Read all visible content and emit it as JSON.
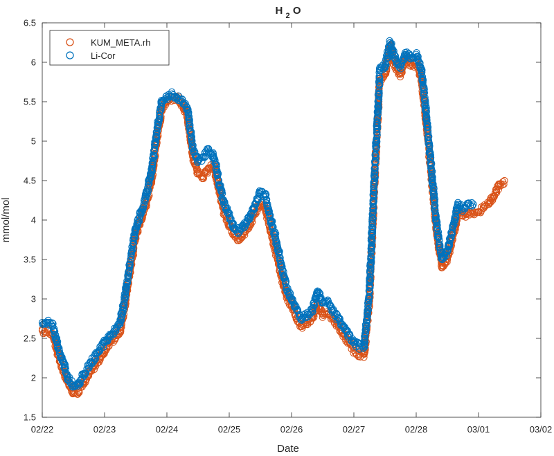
{
  "chart_data": {
    "type": "scatter",
    "title": "H",
    "title_sub": "2",
    "title_tail": "O",
    "xlabel": "Date",
    "ylabel": "mmol/mol",
    "xlim": [
      "2023-02-22",
      "2023-03-02"
    ],
    "ylim": [
      1.5,
      6.5
    ],
    "x_ticks": [
      "02/22",
      "02/23",
      "02/24",
      "02/25",
      "02/26",
      "02/27",
      "02/28",
      "03/01",
      "03/02"
    ],
    "y_ticks": [
      "1.5",
      "2",
      "2.5",
      "3",
      "3.5",
      "4",
      "4.5",
      "5",
      "5.5",
      "6",
      "6.5"
    ],
    "grid": false,
    "legend_position": "top-left",
    "series": [
      {
        "name": "KUM_META.rh",
        "color": "#D95319",
        "x": [
          "2023-02-22 00:00",
          "2023-02-22 02:00",
          "2023-02-22 04:00",
          "2023-02-22 06:00",
          "2023-02-22 08:00",
          "2023-02-22 10:00",
          "2023-02-22 12:00",
          "2023-02-22 14:00",
          "2023-02-22 16:00",
          "2023-02-22 18:00",
          "2023-02-22 20:00",
          "2023-02-22 22:00",
          "2023-02-23 00:00",
          "2023-02-23 02:00",
          "2023-02-23 04:00",
          "2023-02-23 06:00",
          "2023-02-23 08:00",
          "2023-02-23 10:00",
          "2023-02-23 12:00",
          "2023-02-23 14:00",
          "2023-02-23 16:00",
          "2023-02-23 18:00",
          "2023-02-23 20:00",
          "2023-02-23 22:00",
          "2023-02-24 00:00",
          "2023-02-24 02:00",
          "2023-02-24 04:00",
          "2023-02-24 06:00",
          "2023-02-24 08:00",
          "2023-02-24 10:00",
          "2023-02-24 12:00",
          "2023-02-24 14:00",
          "2023-02-24 16:00",
          "2023-02-24 18:00",
          "2023-02-24 20:00",
          "2023-02-24 22:00",
          "2023-02-25 00:00",
          "2023-02-25 02:00",
          "2023-02-25 04:00",
          "2023-02-25 06:00",
          "2023-02-25 08:00",
          "2023-02-25 10:00",
          "2023-02-25 12:00",
          "2023-02-25 14:00",
          "2023-02-25 16:00",
          "2023-02-25 18:00",
          "2023-02-25 20:00",
          "2023-02-25 22:00",
          "2023-02-26 00:00",
          "2023-02-26 02:00",
          "2023-02-26 04:00",
          "2023-02-26 06:00",
          "2023-02-26 08:00",
          "2023-02-26 10:00",
          "2023-02-26 12:00",
          "2023-02-26 14:00",
          "2023-02-26 16:00",
          "2023-02-26 18:00",
          "2023-02-26 20:00",
          "2023-02-26 22:00",
          "2023-02-27 00:00",
          "2023-02-27 02:00",
          "2023-02-27 04:00",
          "2023-02-27 06:00",
          "2023-02-27 08:00",
          "2023-02-27 10:00",
          "2023-02-27 12:00",
          "2023-02-27 14:00",
          "2023-02-27 16:00",
          "2023-02-27 18:00",
          "2023-02-27 20:00",
          "2023-02-27 22:00",
          "2023-02-28 00:00",
          "2023-02-28 02:00",
          "2023-02-28 04:00",
          "2023-02-28 06:00",
          "2023-02-28 08:00",
          "2023-02-28 10:00",
          "2023-02-28 12:00",
          "2023-02-28 14:00",
          "2023-02-28 15:00",
          "2023-02-28 16:00",
          "2023-02-28 18:00",
          "2023-02-28 20:00",
          "2023-02-28 22:00",
          "2023-03-01 00:00",
          "2023-03-01 02:00",
          "2023-03-01 04:00",
          "2023-03-01 06:00",
          "2023-03-01 08:00",
          "2023-03-01 10:00"
        ],
        "y": [
          2.6,
          2.6,
          2.55,
          2.3,
          2.1,
          1.95,
          1.8,
          1.82,
          1.95,
          2.05,
          2.15,
          2.25,
          2.35,
          2.45,
          2.5,
          2.6,
          2.95,
          3.4,
          3.8,
          4.0,
          4.2,
          4.5,
          5.0,
          5.4,
          5.5,
          5.55,
          5.55,
          5.45,
          5.3,
          4.8,
          4.6,
          4.55,
          4.65,
          4.7,
          4.4,
          4.1,
          3.95,
          3.8,
          3.75,
          3.85,
          3.95,
          4.1,
          4.2,
          4.15,
          3.85,
          3.6,
          3.3,
          3.05,
          2.9,
          2.75,
          2.65,
          2.7,
          2.75,
          2.95,
          2.8,
          2.8,
          2.75,
          2.65,
          2.55,
          2.45,
          2.35,
          2.3,
          2.3,
          3.0,
          4.5,
          5.8,
          5.85,
          6.2,
          5.95,
          5.85,
          6.05,
          5.95,
          6.0,
          5.8,
          5.2,
          4.5,
          3.8,
          3.4,
          3.5,
          3.8,
          3.9,
          4.1,
          4.05,
          4.1,
          4.1,
          4.1,
          4.15,
          4.2,
          4.3,
          4.45,
          4.5
        ]
      },
      {
        "name": "Li-Cor",
        "color": "#0072BD",
        "x": [
          "2023-02-22 00:00",
          "2023-02-22 02:00",
          "2023-02-22 04:00",
          "2023-02-22 06:00",
          "2023-02-22 08:00",
          "2023-02-22 10:00",
          "2023-02-22 12:00",
          "2023-02-22 14:00",
          "2023-02-22 16:00",
          "2023-02-22 18:00",
          "2023-02-22 20:00",
          "2023-02-22 22:00",
          "2023-02-23 00:00",
          "2023-02-23 02:00",
          "2023-02-23 04:00",
          "2023-02-23 06:00",
          "2023-02-23 08:00",
          "2023-02-23 10:00",
          "2023-02-23 12:00",
          "2023-02-23 14:00",
          "2023-02-23 16:00",
          "2023-02-23 18:00",
          "2023-02-23 20:00",
          "2023-02-23 22:00",
          "2023-02-24 00:00",
          "2023-02-24 02:00",
          "2023-02-24 04:00",
          "2023-02-24 06:00",
          "2023-02-24 08:00",
          "2023-02-24 10:00",
          "2023-02-24 12:00",
          "2023-02-24 14:00",
          "2023-02-24 16:00",
          "2023-02-24 18:00",
          "2023-02-24 20:00",
          "2023-02-24 22:00",
          "2023-02-25 00:00",
          "2023-02-25 02:00",
          "2023-02-25 04:00",
          "2023-02-25 06:00",
          "2023-02-25 08:00",
          "2023-02-25 10:00",
          "2023-02-25 12:00",
          "2023-02-25 14:00",
          "2023-02-25 16:00",
          "2023-02-25 18:00",
          "2023-02-25 20:00",
          "2023-02-25 22:00",
          "2023-02-26 00:00",
          "2023-02-26 02:00",
          "2023-02-26 04:00",
          "2023-02-26 06:00",
          "2023-02-26 08:00",
          "2023-02-26 10:00",
          "2023-02-26 12:00",
          "2023-02-26 14:00",
          "2023-02-26 16:00",
          "2023-02-26 18:00",
          "2023-02-26 20:00",
          "2023-02-26 22:00",
          "2023-02-27 00:00",
          "2023-02-27 02:00",
          "2023-02-27 04:00",
          "2023-02-27 06:00",
          "2023-02-27 08:00",
          "2023-02-27 10:00",
          "2023-02-27 12:00",
          "2023-02-27 14:00",
          "2023-02-27 16:00",
          "2023-02-27 18:00",
          "2023-02-27 20:00",
          "2023-02-27 22:00",
          "2023-02-28 00:00",
          "2023-02-28 02:00",
          "2023-02-28 04:00",
          "2023-02-28 06:00",
          "2023-02-28 08:00",
          "2023-02-28 10:00",
          "2023-02-28 12:00",
          "2023-02-28 14:00",
          "2023-02-28 15:00",
          "2023-02-28 16:00",
          "2023-02-28 18:00",
          "2023-02-28 20:00",
          "2023-02-28 22:00"
        ],
        "y": [
          2.7,
          2.7,
          2.65,
          2.4,
          2.2,
          2.0,
          1.9,
          1.92,
          2.05,
          2.15,
          2.25,
          2.35,
          2.45,
          2.55,
          2.6,
          2.7,
          3.05,
          3.5,
          3.9,
          4.1,
          4.3,
          4.6,
          5.1,
          5.5,
          5.55,
          5.6,
          5.55,
          5.5,
          5.4,
          4.9,
          4.75,
          4.8,
          4.9,
          4.8,
          4.5,
          4.2,
          4.05,
          3.9,
          3.85,
          3.95,
          4.05,
          4.2,
          4.35,
          4.3,
          4.0,
          3.75,
          3.45,
          3.15,
          3.0,
          2.85,
          2.75,
          2.8,
          2.85,
          3.1,
          2.95,
          2.95,
          2.85,
          2.75,
          2.65,
          2.55,
          2.45,
          2.4,
          2.4,
          3.1,
          4.6,
          5.9,
          5.95,
          6.25,
          6.05,
          5.95,
          6.1,
          6.05,
          6.1,
          5.9,
          5.3,
          4.6,
          3.9,
          3.5,
          3.6,
          3.9,
          4.0,
          4.2,
          4.15,
          4.2,
          4.2
        ]
      }
    ]
  }
}
